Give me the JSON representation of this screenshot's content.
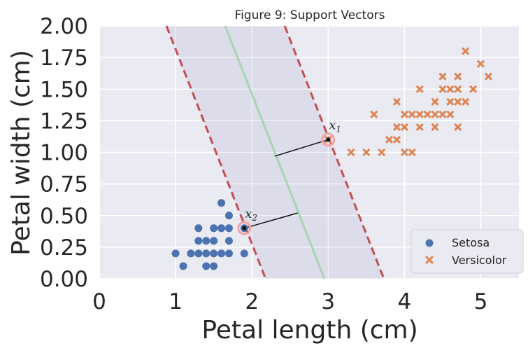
{
  "chart_data": {
    "type": "scatter",
    "title": "Figure 9: Support Vectors",
    "xlabel": "Petal length (cm)",
    "ylabel": "Petal width (cm)",
    "xlim": [
      0,
      5.5
    ],
    "ylim": [
      0,
      2.0
    ],
    "x_ticks": [
      0,
      1,
      2,
      3,
      4,
      5
    ],
    "x_tick_labels": [
      "0",
      "1",
      "2",
      "3",
      "4",
      "5"
    ],
    "y_ticks": [
      0.0,
      0.25,
      0.5,
      0.75,
      1.0,
      1.25,
      1.5,
      1.75,
      2.0
    ],
    "y_tick_labels": [
      "0.00",
      "0.25",
      "0.50",
      "0.75",
      "1.00",
      "1.25",
      "1.50",
      "1.75",
      "2.00"
    ],
    "grid": true,
    "legend_position": "bottom-right",
    "series": [
      {
        "name": "Setosa",
        "marker": "circle",
        "color": "#4c72b0",
        "points": [
          [
            1.0,
            0.2
          ],
          [
            1.1,
            0.1
          ],
          [
            1.2,
            0.2
          ],
          [
            1.3,
            0.2
          ],
          [
            1.3,
            0.3
          ],
          [
            1.3,
            0.4
          ],
          [
            1.4,
            0.1
          ],
          [
            1.4,
            0.2
          ],
          [
            1.4,
            0.3
          ],
          [
            1.5,
            0.1
          ],
          [
            1.5,
            0.2
          ],
          [
            1.5,
            0.3
          ],
          [
            1.5,
            0.4
          ],
          [
            1.6,
            0.2
          ],
          [
            1.6,
            0.4
          ],
          [
            1.6,
            0.6
          ],
          [
            1.7,
            0.2
          ],
          [
            1.7,
            0.3
          ],
          [
            1.7,
            0.4
          ],
          [
            1.7,
            0.5
          ],
          [
            1.9,
            0.2
          ],
          [
            1.9,
            0.4
          ]
        ]
      },
      {
        "name": "Versicolor",
        "marker": "x",
        "color": "#dd8452",
        "points": [
          [
            3.0,
            1.1
          ],
          [
            3.3,
            1.0
          ],
          [
            3.5,
            1.0
          ],
          [
            3.6,
            1.3
          ],
          [
            3.7,
            1.0
          ],
          [
            3.8,
            1.1
          ],
          [
            3.9,
            1.1
          ],
          [
            3.9,
            1.2
          ],
          [
            3.9,
            1.4
          ],
          [
            4.0,
            1.0
          ],
          [
            4.0,
            1.2
          ],
          [
            4.0,
            1.3
          ],
          [
            4.1,
            1.0
          ],
          [
            4.1,
            1.3
          ],
          [
            4.2,
            1.2
          ],
          [
            4.2,
            1.3
          ],
          [
            4.2,
            1.5
          ],
          [
            4.3,
            1.3
          ],
          [
            4.4,
            1.2
          ],
          [
            4.4,
            1.3
          ],
          [
            4.4,
            1.4
          ],
          [
            4.5,
            1.3
          ],
          [
            4.5,
            1.5
          ],
          [
            4.5,
            1.6
          ],
          [
            4.6,
            1.3
          ],
          [
            4.6,
            1.4
          ],
          [
            4.6,
            1.5
          ],
          [
            4.7,
            1.2
          ],
          [
            4.7,
            1.4
          ],
          [
            4.7,
            1.5
          ],
          [
            4.7,
            1.6
          ],
          [
            4.8,
            1.4
          ],
          [
            4.8,
            1.8
          ],
          [
            4.9,
            1.5
          ],
          [
            5.0,
            1.7
          ],
          [
            5.1,
            1.6
          ]
        ]
      }
    ],
    "decision_boundary": {
      "color": "#a8d5b2",
      "line": [
        [
          1.65,
          2.0
        ],
        [
          2.95,
          0.0
        ]
      ]
    },
    "margin_lines": {
      "color": "#c44e52",
      "style": "dashed",
      "lines": [
        [
          [
            0.88,
            2.0
          ],
          [
            2.18,
            0.0
          ]
        ],
        [
          [
            2.43,
            2.0
          ],
          [
            3.73,
            0.0
          ]
        ]
      ]
    },
    "margin_region_color": "#dcdcea",
    "support_vectors": [
      {
        "label": "x",
        "subscript": "1",
        "point": [
          3.0,
          1.1
        ],
        "projection": [
          2.3,
          0.97
        ]
      },
      {
        "label": "x",
        "subscript": "2",
        "point": [
          1.9,
          0.4
        ],
        "projection": [
          2.6,
          0.52
        ]
      }
    ]
  }
}
